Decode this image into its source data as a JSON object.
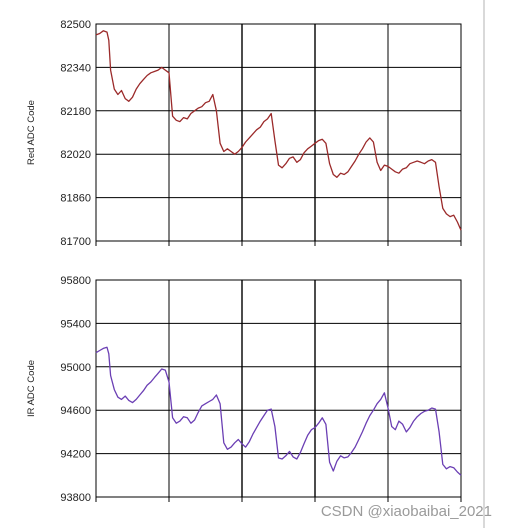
{
  "watermark": "CSDN @xiaobaibai_2021",
  "chart_data": [
    {
      "type": "line",
      "title": "",
      "xlabel": "",
      "ylabel": "Red ADC Code",
      "ylim": [
        81700,
        82500
      ],
      "yticks": [
        82500,
        82340,
        82180,
        82020,
        81860,
        81700
      ],
      "xlim": [
        0,
        100
      ],
      "xticks": [
        0,
        20,
        40,
        60,
        80,
        100
      ],
      "grid": true,
      "color": "#9b2a2a",
      "series": [
        {
          "x": [
            0,
            1,
            2,
            3,
            3.5,
            4,
            5,
            6,
            7,
            8,
            9,
            10,
            11,
            12,
            13,
            14,
            15,
            16,
            17,
            18,
            19,
            20,
            21,
            22,
            23,
            24,
            25,
            26,
            27,
            28,
            29,
            30,
            31,
            32,
            33,
            34,
            35,
            36,
            37,
            38,
            39,
            40,
            41,
            42,
            43,
            44,
            45,
            46,
            47,
            48,
            49,
            50,
            51,
            52,
            53,
            54,
            55,
            56,
            57,
            58,
            59,
            60,
            61,
            62,
            63,
            64,
            65,
            66,
            67,
            68,
            69,
            70,
            71,
            72,
            73,
            74,
            75,
            76,
            77,
            78,
            79,
            80,
            81,
            82,
            83,
            84,
            85,
            86,
            87,
            88,
            89,
            90,
            91,
            92,
            93,
            94,
            95,
            96,
            97,
            98,
            99,
            100
          ],
          "y": [
            82460,
            82465,
            82475,
            82470,
            82440,
            82330,
            82260,
            82240,
            82255,
            82225,
            82215,
            82230,
            82260,
            82280,
            82295,
            82310,
            82320,
            82325,
            82330,
            82340,
            82330,
            82320,
            82160,
            82145,
            82140,
            82155,
            82150,
            82170,
            82180,
            82190,
            82195,
            82210,
            82215,
            82240,
            82180,
            82060,
            82030,
            82040,
            82030,
            82020,
            82030,
            82045,
            82065,
            82080,
            82095,
            82110,
            82120,
            82140,
            82150,
            82170,
            82070,
            81980,
            81970,
            81985,
            82005,
            82010,
            81990,
            82000,
            82025,
            82040,
            82050,
            82060,
            82070,
            82075,
            82060,
            81985,
            81945,
            81935,
            81950,
            81945,
            81955,
            81975,
            81995,
            82020,
            82040,
            82065,
            82080,
            82065,
            81990,
            81960,
            81980,
            81975,
            81965,
            81955,
            81950,
            81965,
            81970,
            81985,
            81990,
            81995,
            81990,
            81985,
            81995,
            82000,
            81990,
            81900,
            81820,
            81800,
            81790,
            81795,
            81770,
            81740
          ]
        }
      ]
    },
    {
      "type": "line",
      "title": "",
      "xlabel": "",
      "ylabel": "IR ADC Code",
      "ylim": [
        93800,
        95800
      ],
      "yticks": [
        95800,
        95400,
        95000,
        94600,
        94200,
        93800
      ],
      "xlim": [
        0,
        100
      ],
      "xticks": [
        0,
        20,
        40,
        60,
        80,
        100
      ],
      "grid": true,
      "color": "#6b3fb4",
      "series": [
        {
          "x": [
            0,
            1,
            2,
            3,
            3.5,
            4,
            5,
            6,
            7,
            8,
            9,
            10,
            11,
            12,
            13,
            14,
            15,
            16,
            17,
            18,
            19,
            20,
            21,
            22,
            23,
            24,
            25,
            26,
            27,
            28,
            29,
            30,
            31,
            32,
            33,
            34,
            35,
            36,
            37,
            38,
            39,
            40,
            41,
            42,
            43,
            44,
            45,
            46,
            47,
            48,
            49,
            50,
            51,
            52,
            53,
            54,
            55,
            56,
            57,
            58,
            59,
            60,
            61,
            62,
            63,
            64,
            65,
            66,
            67,
            68,
            69,
            70,
            71,
            72,
            73,
            74,
            75,
            76,
            77,
            78,
            79,
            80,
            81,
            82,
            83,
            84,
            85,
            86,
            87,
            88,
            89,
            90,
            91,
            92,
            93,
            94,
            95,
            96,
            97,
            98,
            99,
            100
          ],
          "y": [
            95130,
            95150,
            95170,
            95180,
            95120,
            94920,
            94790,
            94720,
            94700,
            94730,
            94690,
            94670,
            94700,
            94740,
            94780,
            94830,
            94860,
            94900,
            94940,
            94980,
            94970,
            94860,
            94530,
            94480,
            94500,
            94540,
            94530,
            94480,
            94510,
            94580,
            94640,
            94660,
            94680,
            94700,
            94740,
            94660,
            94300,
            94240,
            94260,
            94300,
            94330,
            94290,
            94260,
            94310,
            94380,
            94440,
            94500,
            94550,
            94600,
            94610,
            94450,
            94160,
            94150,
            94180,
            94220,
            94170,
            94150,
            94210,
            94290,
            94370,
            94420,
            94440,
            94480,
            94530,
            94470,
            94120,
            94040,
            94130,
            94180,
            94160,
            94170,
            94210,
            94260,
            94330,
            94400,
            94480,
            94550,
            94600,
            94660,
            94700,
            94760,
            94620,
            94450,
            94420,
            94500,
            94470,
            94400,
            94440,
            94500,
            94540,
            94570,
            94590,
            94600,
            94620,
            94610,
            94400,
            94100,
            94060,
            94080,
            94070,
            94030,
            94000
          ]
        }
      ]
    }
  ]
}
